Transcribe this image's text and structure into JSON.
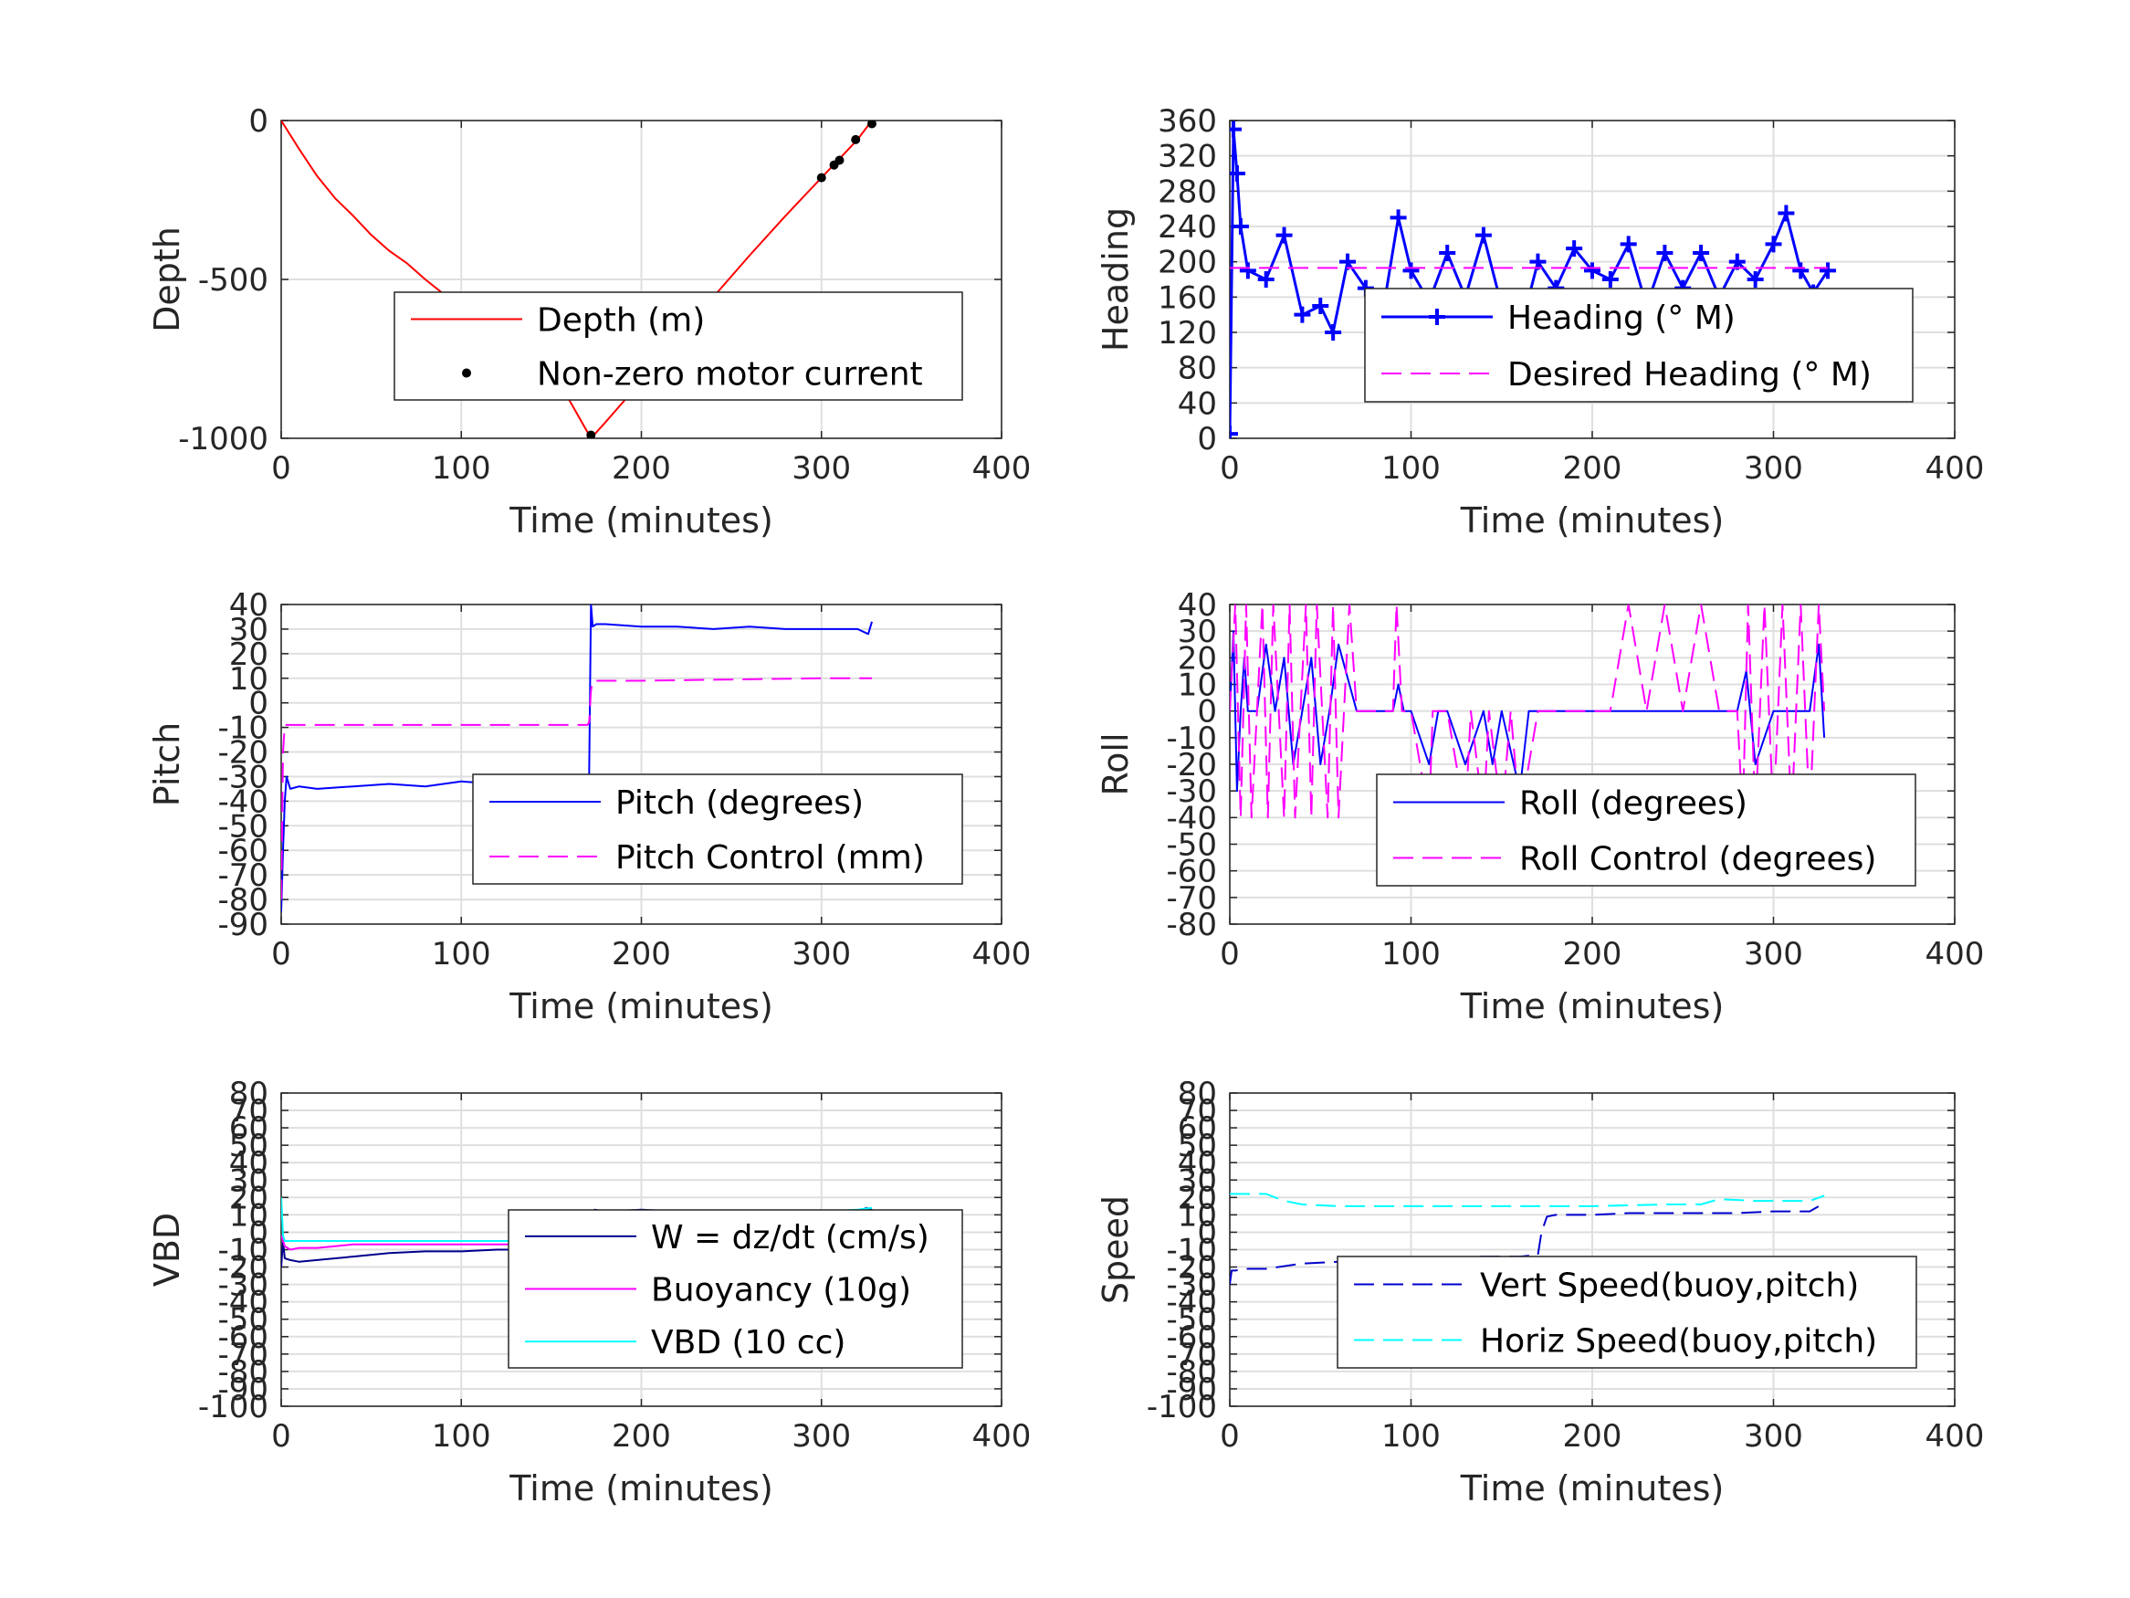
{
  "chart_data": [
    {
      "type": "line",
      "xlabel": "Time (minutes)",
      "ylabel": "Depth",
      "xlim": [
        0,
        400
      ],
      "ylim": [
        -1000,
        0
      ],
      "xticks": [
        0,
        100,
        200,
        300,
        400
      ],
      "yticks": [
        -1000,
        -500,
        0
      ],
      "grid": true,
      "legend_position": "bottom-center",
      "series": [
        {
          "name": "Depth (m)",
          "color": "#ff0000",
          "style": "solid",
          "x": [
            0,
            10,
            20,
            30,
            40,
            50,
            60,
            70,
            80,
            90,
            100,
            110,
            120,
            130,
            140,
            150,
            160,
            172,
            180,
            200,
            220,
            240,
            260,
            280,
            300,
            310,
            320,
            328
          ],
          "y": [
            0,
            -90,
            -175,
            -245,
            -300,
            -360,
            -410,
            -450,
            -500,
            -545,
            -590,
            -640,
            -690,
            -735,
            -790,
            -835,
            -880,
            -1000,
            -950,
            -820,
            -690,
            -555,
            -425,
            -300,
            -180,
            -120,
            -60,
            0
          ]
        },
        {
          "name": "Non-zero motor current",
          "color": "#000000",
          "style": "markers",
          "x": [
            172,
            300,
            307,
            310,
            319,
            328
          ],
          "y": [
            -990,
            -180,
            -140,
            -125,
            -60,
            -10
          ]
        }
      ]
    },
    {
      "type": "line",
      "xlabel": "Time (minutes)",
      "ylabel": "Heading",
      "xlim": [
        0,
        400
      ],
      "ylim": [
        0,
        360
      ],
      "xticks": [
        0,
        100,
        200,
        300,
        400
      ],
      "yticks": [
        0,
        40,
        80,
        120,
        160,
        200,
        240,
        280,
        320,
        360
      ],
      "grid": true,
      "legend_position": "bottom-right",
      "series": [
        {
          "name": "Heading (° M)",
          "color": "#0000ff",
          "style": "plus-markers",
          "x": [
            0,
            2,
            4,
            6,
            10,
            20,
            30,
            40,
            50,
            57,
            65,
            75,
            85,
            93,
            100,
            110,
            120,
            130,
            140,
            150,
            160,
            170,
            180,
            190,
            200,
            210,
            220,
            230,
            240,
            250,
            260,
            270,
            280,
            290,
            300,
            307,
            315,
            322,
            330
          ],
          "y": [
            5,
            350,
            300,
            240,
            190,
            180,
            230,
            140,
            150,
            120,
            200,
            170,
            150,
            250,
            190,
            155,
            210,
            160,
            230,
            150,
            120,
            200,
            170,
            215,
            190,
            180,
            220,
            150,
            210,
            170,
            210,
            160,
            200,
            180,
            220,
            255,
            190,
            165,
            190
          ]
        },
        {
          "name": "Desired Heading (° M)",
          "color": "#ff00ff",
          "style": "dashed",
          "x": [
            0,
            330
          ],
          "y": [
            193,
            193
          ]
        }
      ]
    },
    {
      "type": "line",
      "xlabel": "Time (minutes)",
      "ylabel": "Pitch",
      "xlim": [
        0,
        400
      ],
      "ylim": [
        -90,
        40
      ],
      "xticks": [
        0,
        100,
        200,
        300,
        400
      ],
      "yticks": [
        -90,
        -80,
        -70,
        -60,
        -50,
        -40,
        -30,
        -20,
        -10,
        0,
        10,
        20,
        30,
        40
      ],
      "grid": true,
      "legend_position": "bottom-right",
      "series": [
        {
          "name": "Pitch (degrees)",
          "color": "#0000ff",
          "style": "solid",
          "x": [
            0,
            1,
            2,
            3,
            5,
            10,
            20,
            40,
            60,
            80,
            100,
            120,
            140,
            160,
            170,
            171,
            172,
            173,
            175,
            180,
            200,
            220,
            240,
            260,
            280,
            300,
            320,
            326,
            328
          ],
          "y": [
            -85,
            -60,
            -40,
            -30,
            -35,
            -34,
            -35,
            -34,
            -33,
            -34,
            -32,
            -33,
            -32,
            -31,
            -30,
            -29,
            40,
            31,
            32,
            32,
            31,
            31,
            30,
            31,
            30,
            30,
            30,
            28,
            33
          ]
        },
        {
          "name": "Pitch Control (mm)",
          "color": "#ff00ff",
          "style": "dashed",
          "x": [
            0,
            1,
            2,
            10,
            170,
            171,
            172,
            173,
            180,
            200,
            300,
            328
          ],
          "y": [
            -80,
            -20,
            -9,
            -9,
            -9,
            -8,
            5,
            9,
            9,
            9,
            10,
            10
          ]
        }
      ]
    },
    {
      "type": "line",
      "xlabel": "Time (minutes)",
      "ylabel": "Roll",
      "xlim": [
        0,
        400
      ],
      "ylim": [
        -80,
        40
      ],
      "xticks": [
        0,
        100,
        200,
        300,
        400
      ],
      "yticks": [
        -80,
        -70,
        -60,
        -50,
        -40,
        -30,
        -20,
        -10,
        0,
        10,
        20,
        30,
        40
      ],
      "grid": true,
      "legend_position": "bottom-right",
      "series": [
        {
          "name": "Roll (degrees)",
          "color": "#0000ff",
          "style": "solid",
          "x": [
            0,
            2,
            4,
            6,
            8,
            10,
            15,
            20,
            25,
            30,
            35,
            40,
            45,
            50,
            55,
            60,
            70,
            80,
            90,
            93,
            96,
            100,
            110,
            115,
            120,
            130,
            140,
            145,
            150,
            160,
            165,
            170,
            180,
            200,
            220,
            240,
            260,
            270,
            280,
            285,
            290,
            300,
            310,
            320,
            325,
            328
          ],
          "y": [
            0,
            30,
            -30,
            0,
            20,
            0,
            0,
            25,
            0,
            20,
            -20,
            0,
            20,
            -20,
            0,
            25,
            0,
            0,
            0,
            10,
            0,
            0,
            -20,
            0,
            0,
            -20,
            0,
            -20,
            0,
            -30,
            0,
            0,
            0,
            0,
            0,
            0,
            0,
            0,
            0,
            15,
            -20,
            0,
            0,
            0,
            25,
            -10
          ]
        },
        {
          "name": "Roll Control (degrees)",
          "color": "#ff00ff",
          "style": "dashed",
          "x": [
            0,
            3,
            6,
            9,
            12,
            15,
            18,
            21,
            24,
            27,
            30,
            33,
            36,
            39,
            42,
            45,
            48,
            51,
            54,
            57,
            60,
            63,
            66,
            70,
            80,
            90,
            92,
            95,
            100,
            110,
            112,
            120,
            130,
            133,
            140,
            143,
            150,
            155,
            160,
            170,
            180,
            190,
            200,
            210,
            220,
            230,
            240,
            250,
            260,
            270,
            280,
            283,
            286,
            290,
            295,
            300,
            305,
            310,
            315,
            320,
            325,
            328
          ],
          "y": [
            0,
            40,
            -40,
            40,
            -40,
            0,
            40,
            -40,
            40,
            0,
            -40,
            40,
            -40,
            0,
            40,
            -40,
            40,
            0,
            -40,
            40,
            -40,
            0,
            40,
            0,
            0,
            0,
            40,
            0,
            0,
            -40,
            0,
            0,
            -40,
            0,
            -40,
            0,
            -40,
            0,
            -40,
            0,
            0,
            0,
            0,
            0,
            40,
            0,
            40,
            0,
            40,
            0,
            0,
            -40,
            40,
            -40,
            40,
            -40,
            40,
            -40,
            40,
            -40,
            40,
            0
          ]
        }
      ]
    },
    {
      "type": "line",
      "xlabel": "Time (minutes)",
      "ylabel": "VBD",
      "xlim": [
        0,
        400
      ],
      "ylim": [
        -100,
        80
      ],
      "xticks": [
        0,
        100,
        200,
        300,
        400
      ],
      "yticks": [
        -100,
        -90,
        -80,
        -70,
        -60,
        -50,
        -40,
        -30,
        -20,
        -10,
        0,
        10,
        20,
        30,
        40,
        50,
        60,
        70,
        80
      ],
      "grid": true,
      "legend_position": "bottom-right",
      "series": [
        {
          "name": "W = dz/dt (cm/s)",
          "color": "#00008b",
          "style": "solid",
          "x": [
            0,
            1,
            2,
            5,
            10,
            20,
            40,
            60,
            80,
            100,
            120,
            140,
            160,
            170,
            172,
            174,
            180,
            200,
            220,
            240,
            260,
            280,
            300,
            320,
            325,
            328
          ],
          "y": [
            -20,
            -5,
            -15,
            -16,
            -17,
            -16,
            -14,
            -12,
            -11,
            -11,
            -10,
            -10,
            -9,
            -8,
            -8,
            13,
            12,
            13,
            12,
            12,
            12,
            12,
            12,
            12,
            14,
            13
          ]
        },
        {
          "name": "Buoyancy (10g)",
          "color": "#ff00ff",
          "style": "solid",
          "x": [
            0,
            2,
            5,
            10,
            20,
            30,
            40,
            60,
            80,
            100,
            120,
            140,
            160,
            170,
            172,
            175,
            180,
            200,
            220,
            240,
            260,
            280,
            300,
            320,
            328
          ],
          "y": [
            -2,
            -8,
            -10,
            -9,
            -9,
            -8,
            -7,
            -7,
            -7,
            -7,
            -7,
            -7,
            -6,
            -6,
            -5,
            2,
            4,
            5,
            5,
            6,
            7,
            7,
            8,
            8,
            9
          ]
        },
        {
          "name": "VBD (10 cc)",
          "color": "#00ffff",
          "style": "solid",
          "x": [
            0,
            1,
            2,
            5,
            10,
            20,
            40,
            60,
            80,
            100,
            120,
            140,
            160,
            170,
            172,
            175,
            180,
            200,
            220,
            240,
            260,
            280,
            300,
            320,
            328
          ],
          "y": [
            20,
            -2,
            -5,
            -5,
            -5,
            -5,
            -5,
            -5,
            -5,
            -5,
            -5,
            -5,
            -5,
            -5,
            -5,
            6,
            6,
            6,
            7,
            8,
            10,
            11,
            12,
            13,
            14
          ]
        }
      ]
    },
    {
      "type": "line",
      "xlabel": "Time (minutes)",
      "ylabel": "Speed",
      "xlim": [
        0,
        400
      ],
      "ylim": [
        -100,
        80
      ],
      "xticks": [
        0,
        100,
        200,
        300,
        400
      ],
      "yticks": [
        -100,
        -90,
        -80,
        -70,
        -60,
        -50,
        -40,
        -30,
        -20,
        -10,
        0,
        10,
        20,
        30,
        40,
        50,
        60,
        70,
        80
      ],
      "grid": true,
      "legend_position": "bottom-right",
      "series": [
        {
          "name": "Vert Speed(buoy,pitch)",
          "color": "#0000cd",
          "style": "dashed",
          "x": [
            0,
            1,
            3,
            10,
            20,
            40,
            60,
            80,
            100,
            120,
            140,
            160,
            170,
            172,
            175,
            180,
            200,
            220,
            240,
            260,
            280,
            300,
            320,
            325,
            328
          ],
          "y": [
            -30,
            -22,
            -22,
            -21,
            -21,
            -18,
            -17,
            -16,
            -15,
            -15,
            -14,
            -14,
            -13,
            0,
            9,
            10,
            10,
            11,
            11,
            11,
            11,
            12,
            12,
            15,
            13
          ]
        },
        {
          "name": "Horiz Speed(buoy,pitch)",
          "color": "#00ffff",
          "style": "dashed",
          "x": [
            0,
            5,
            10,
            20,
            25,
            30,
            40,
            60,
            80,
            100,
            140,
            170,
            200,
            240,
            260,
            270,
            290,
            300,
            320,
            328
          ],
          "y": [
            22,
            22,
            22,
            22,
            20,
            18,
            16,
            15,
            15,
            15,
            15,
            15,
            15,
            16,
            16,
            19,
            18,
            18,
            18,
            21
          ]
        }
      ]
    }
  ]
}
